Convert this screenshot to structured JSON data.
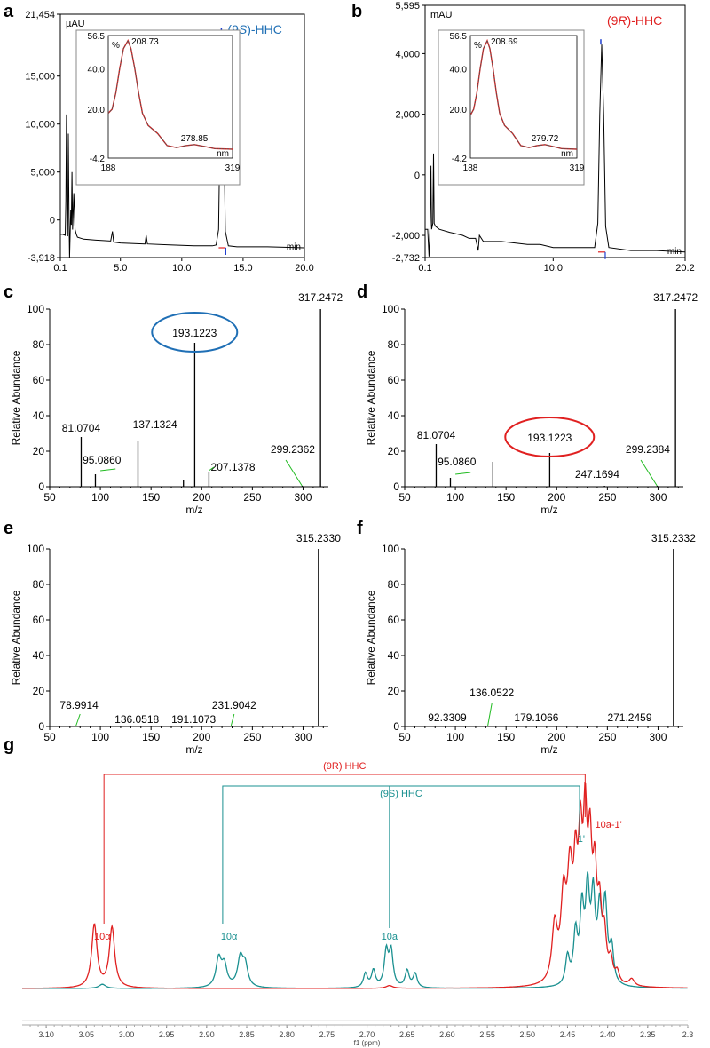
{
  "panel_labels": [
    "a",
    "b",
    "c",
    "d",
    "e",
    "f",
    "g"
  ],
  "chart_data": [
    {
      "panel": "a",
      "type": "line",
      "unit_label": "µAU",
      "x_end_label": "min",
      "peak_label_prefix": "(9",
      "peak_label_config": "S",
      "peak_label_suffix": ")-HHC",
      "peak_label_color": "#1f6fb5",
      "x_ticks": [
        "0.1",
        "5.0",
        "10.0",
        "15.0",
        "20.0"
      ],
      "y_ticks": [
        "21,454",
        "15,000",
        "10,000",
        "5,000",
        "0",
        "-3,918"
      ],
      "x_range": [
        0.1,
        20.0
      ],
      "y_range": [
        -3918,
        21454
      ],
      "trace": [
        [
          0.1,
          -1500
        ],
        [
          0.3,
          -1500
        ],
        [
          0.5,
          -1600
        ],
        [
          0.55,
          2000
        ],
        [
          0.6,
          11000
        ],
        [
          0.65,
          -1500
        ],
        [
          0.7,
          -1700
        ],
        [
          0.75,
          9000
        ],
        [
          0.8,
          1000
        ],
        [
          0.85,
          -3900
        ],
        [
          0.95,
          1000
        ],
        [
          1.0,
          -500
        ],
        [
          1.05,
          5000
        ],
        [
          1.1,
          -1000
        ],
        [
          1.2,
          2800
        ],
        [
          1.3,
          -1000
        ],
        [
          1.4,
          -1500
        ],
        [
          1.5,
          -1800
        ],
        [
          2.0,
          -2000
        ],
        [
          3.0,
          -2100
        ],
        [
          4.2,
          -2200
        ],
        [
          4.35,
          -1200
        ],
        [
          4.45,
          -2300
        ],
        [
          5.0,
          -2400
        ],
        [
          7.0,
          -2500
        ],
        [
          7.1,
          -1600
        ],
        [
          7.2,
          -2500
        ],
        [
          9.0,
          -2600
        ],
        [
          11.0,
          -2700
        ],
        [
          12.5,
          -2700
        ],
        [
          12.8,
          -2600
        ],
        [
          13.0,
          -1000
        ],
        [
          13.15,
          12000
        ],
        [
          13.3,
          19500
        ],
        [
          13.4,
          12000
        ],
        [
          13.55,
          -1200
        ],
        [
          13.8,
          -2700
        ],
        [
          14.5,
          -2800
        ],
        [
          17.0,
          -2800
        ],
        [
          20.0,
          -2900
        ]
      ],
      "inset": {
        "type": "line",
        "y_axis_label": "%",
        "x_axis_label": "nm",
        "x_ticks": [
          "188",
          "319"
        ],
        "y_ticks": [
          "56.5",
          "40.0",
          "20.0",
          "-4.2"
        ],
        "x_range": [
          188,
          319
        ],
        "y_range": [
          -4.2,
          56.5
        ],
        "peak_labels": [
          "208.73",
          "278.85"
        ],
        "trace": [
          [
            188,
            18
          ],
          [
            192,
            20
          ],
          [
            196,
            28
          ],
          [
            200,
            40
          ],
          [
            204,
            50
          ],
          [
            208.73,
            54
          ],
          [
            212,
            50
          ],
          [
            216,
            40
          ],
          [
            220,
            28
          ],
          [
            224,
            18
          ],
          [
            230,
            12
          ],
          [
            240,
            8
          ],
          [
            250,
            2
          ],
          [
            260,
            1
          ],
          [
            270,
            2
          ],
          [
            278.85,
            2.5
          ],
          [
            290,
            1.5
          ],
          [
            300,
            0.5
          ],
          [
            319,
            0.2
          ]
        ]
      }
    },
    {
      "panel": "b",
      "type": "line",
      "unit_label": "mAU",
      "x_end_label": "min",
      "peak_label_prefix": "(9",
      "peak_label_config": "R",
      "peak_label_suffix": ")-HHC",
      "peak_label_color": "#e02020",
      "x_ticks": [
        "0.1",
        "10.0",
        "20.2"
      ],
      "y_ticks": [
        "5,595",
        "4,000",
        "2,000",
        "0",
        "-2,000",
        "-2,732"
      ],
      "x_range": [
        0.1,
        20.2
      ],
      "y_range": [
        -2732,
        5595
      ],
      "trace": [
        [
          0.1,
          -1800
        ],
        [
          0.3,
          -1800
        ],
        [
          0.4,
          -2700
        ],
        [
          0.5,
          -1500
        ],
        [
          0.55,
          300
        ],
        [
          0.6,
          -1800
        ],
        [
          0.7,
          -1600
        ],
        [
          0.75,
          700
        ],
        [
          0.8,
          -1600
        ],
        [
          0.9,
          -1700
        ],
        [
          1.2,
          -1800
        ],
        [
          2.0,
          -1900
        ],
        [
          3.0,
          -2000
        ],
        [
          3.5,
          -2100
        ],
        [
          4.0,
          -2100
        ],
        [
          4.2,
          -2500
        ],
        [
          4.3,
          -2000
        ],
        [
          4.6,
          -2200
        ],
        [
          6.0,
          -2200
        ],
        [
          8.0,
          -2300
        ],
        [
          9.0,
          -2300
        ],
        [
          10.0,
          -2400
        ],
        [
          12.0,
          -2400
        ],
        [
          13.2,
          -2400
        ],
        [
          13.45,
          -1600
        ],
        [
          13.6,
          2000
        ],
        [
          13.75,
          4300
        ],
        [
          13.9,
          2000
        ],
        [
          14.05,
          -1700
        ],
        [
          14.3,
          -2400
        ],
        [
          16.0,
          -2500
        ],
        [
          18.0,
          -2500
        ],
        [
          20.2,
          -2550
        ]
      ],
      "inset": {
        "type": "line",
        "y_axis_label": "%",
        "x_axis_label": "nm",
        "x_ticks": [
          "188",
          "319"
        ],
        "y_ticks": [
          "56.5",
          "40.0",
          "20.0",
          "-4.2"
        ],
        "x_range": [
          188,
          319
        ],
        "y_range": [
          -4.2,
          56.5
        ],
        "peak_labels": [
          "208.69",
          "279.72"
        ],
        "trace": [
          [
            188,
            17
          ],
          [
            192,
            20
          ],
          [
            196,
            28
          ],
          [
            200,
            40
          ],
          [
            204,
            50
          ],
          [
            208.69,
            54
          ],
          [
            212,
            50
          ],
          [
            216,
            40
          ],
          [
            220,
            28
          ],
          [
            224,
            18
          ],
          [
            230,
            12
          ],
          [
            240,
            8
          ],
          [
            250,
            2
          ],
          [
            260,
            1
          ],
          [
            270,
            2
          ],
          [
            279.72,
            2.5
          ],
          [
            290,
            1.5
          ],
          [
            300,
            0.5
          ],
          [
            319,
            0.2
          ]
        ]
      }
    },
    {
      "panel": "c",
      "type": "bar",
      "xlabel": "m/z",
      "ylabel": "Relative Abundance",
      "x_range": [
        50,
        325
      ],
      "y_range": [
        0,
        100
      ],
      "x_ticks": [
        "50",
        "100",
        "150",
        "200",
        "250",
        "300"
      ],
      "y_ticks": [
        "0",
        "20",
        "40",
        "60",
        "80",
        "100"
      ],
      "circle_label": "193.1223",
      "circle_color": "#1f6fb5",
      "peaks": [
        [
          81.0704,
          28
        ],
        [
          95.086,
          7
        ],
        [
          137.1324,
          26
        ],
        [
          182,
          4
        ],
        [
          193.1223,
          81
        ],
        [
          207.1378,
          8
        ],
        [
          299.2362,
          0.5
        ],
        [
          317.2472,
          100
        ]
      ],
      "peak_labels": [
        "81.0704",
        "95.0860",
        "137.1324",
        "207.1378",
        "299.2362",
        "317.2472"
      ]
    },
    {
      "panel": "d",
      "type": "bar",
      "xlabel": "m/z",
      "ylabel": "Relative Abundance",
      "x_range": [
        50,
        325
      ],
      "y_range": [
        0,
        100
      ],
      "x_ticks": [
        "50",
        "100",
        "150",
        "200",
        "250",
        "300"
      ],
      "y_ticks": [
        "0",
        "20",
        "40",
        "60",
        "80",
        "100"
      ],
      "circle_label": "193.1223",
      "circle_color": "#e02020",
      "peaks": [
        [
          81.0704,
          24
        ],
        [
          95.086,
          5
        ],
        [
          137,
          14
        ],
        [
          193.1223,
          19
        ],
        [
          247.1694,
          0.5
        ],
        [
          299.2384,
          0.5
        ],
        [
          317.2472,
          100
        ]
      ],
      "peak_labels": [
        "81.0704",
        "95.0860",
        "247.1694",
        "299.2384",
        "317.2472"
      ]
    },
    {
      "panel": "e",
      "type": "bar",
      "xlabel": "m/z",
      "ylabel": "Relative Abundance",
      "x_range": [
        50,
        325
      ],
      "y_range": [
        0,
        100
      ],
      "x_ticks": [
        "50",
        "100",
        "150",
        "200",
        "250",
        "300"
      ],
      "y_ticks": [
        "0",
        "20",
        "40",
        "60",
        "80",
        "100"
      ],
      "peaks": [
        [
          78.9914,
          0.5
        ],
        [
          136.0518,
          0.5
        ],
        [
          191.1073,
          0.5
        ],
        [
          231.9042,
          0.5
        ],
        [
          315.233,
          100
        ]
      ],
      "peak_labels": [
        "78.9914",
        "136.0518",
        "191.1073",
        "231.9042",
        "315.2330"
      ]
    },
    {
      "panel": "f",
      "type": "bar",
      "xlabel": "m/z",
      "ylabel": "Relative Abundance",
      "x_range": [
        50,
        325
      ],
      "y_range": [
        0,
        100
      ],
      "x_ticks": [
        "50",
        "100",
        "150",
        "200",
        "250",
        "300"
      ],
      "y_ticks": [
        "0",
        "20",
        "40",
        "60",
        "80",
        "100"
      ],
      "peaks": [
        [
          92.3309,
          0.5
        ],
        [
          136.0522,
          0.5
        ],
        [
          179.1066,
          0.5
        ],
        [
          271.2459,
          0.5
        ],
        [
          315.2332,
          100
        ]
      ],
      "peak_labels": [
        "92.3309",
        "136.0522",
        "179.1066",
        "271.2459",
        "315.2332"
      ]
    },
    {
      "panel": "g",
      "type": "line",
      "xlabel": "f1 (ppm)",
      "x_range": [
        3.13,
        2.3
      ],
      "x_ticks": [
        "3.10",
        "3.05",
        "3.00",
        "2.95",
        "2.90",
        "2.85",
        "2.80",
        "2.75",
        "2.70",
        "2.65",
        "2.60",
        "2.55",
        "2.50",
        "2.45",
        "2.40",
        "2.35",
        "2.3"
      ],
      "series": [
        {
          "name": "(9R) HHC",
          "color": "#e02020",
          "bracket_positions": [
            3.028,
            2.428
          ],
          "peaks": [
            [
              3.04,
              0.45,
              0.004
            ],
            [
              3.018,
              0.43,
              0.004
            ],
            [
              2.466,
              0.4,
              0.004
            ],
            [
              2.455,
              0.55,
              0.004
            ],
            [
              2.447,
              0.7,
              0.004
            ],
            [
              2.44,
              0.65,
              0.003
            ],
            [
              2.434,
              0.85,
              0.003
            ],
            [
              2.428,
              1.0,
              0.003
            ],
            [
              2.422,
              0.82,
              0.003
            ],
            [
              2.416,
              0.66,
              0.003
            ],
            [
              2.41,
              0.45,
              0.003
            ],
            [
              2.404,
              0.3,
              0.003
            ],
            [
              2.396,
              0.15,
              0.003
            ],
            [
              2.388,
              0.08,
              0.003
            ],
            [
              2.37,
              0.05,
              0.004
            ],
            [
              2.672,
              0.02,
              0.005
            ]
          ],
          "labels": [
            {
              "text": "10α",
              "x": 3.03
            },
            {
              "text": "10a-1'",
              "x": 2.41
            }
          ]
        },
        {
          "name": "(9S) HHC",
          "color": "#1a9090",
          "bracket_positions": [
            2.88,
            2.435
          ],
          "peaks": [
            [
              2.885,
              0.2,
              0.004
            ],
            [
              2.878,
              0.15,
              0.004
            ],
            [
              2.858,
              0.2,
              0.004
            ],
            [
              2.852,
              0.15,
              0.004
            ],
            [
              2.702,
              0.1,
              0.003
            ],
            [
              2.692,
              0.12,
              0.003
            ],
            [
              2.676,
              0.25,
              0.003
            ],
            [
              2.67,
              0.25,
              0.003
            ],
            [
              2.65,
              0.12,
              0.003
            ],
            [
              2.64,
              0.1,
              0.003
            ],
            [
              2.45,
              0.2,
              0.003
            ],
            [
              2.44,
              0.35,
              0.003
            ],
            [
              2.432,
              0.5,
              0.003
            ],
            [
              2.425,
              0.62,
              0.003
            ],
            [
              2.418,
              0.58,
              0.003
            ],
            [
              2.41,
              0.48,
              0.003
            ],
            [
              2.403,
              0.55,
              0.003
            ],
            [
              2.395,
              0.25,
              0.003
            ],
            [
              3.03,
              0.03,
              0.005
            ]
          ],
          "labels": [
            {
              "text": "10α",
              "x": 2.872
            },
            {
              "text": "10a",
              "x": 2.672
            },
            {
              "text": "1'",
              "x": 2.433
            }
          ]
        }
      ]
    }
  ]
}
